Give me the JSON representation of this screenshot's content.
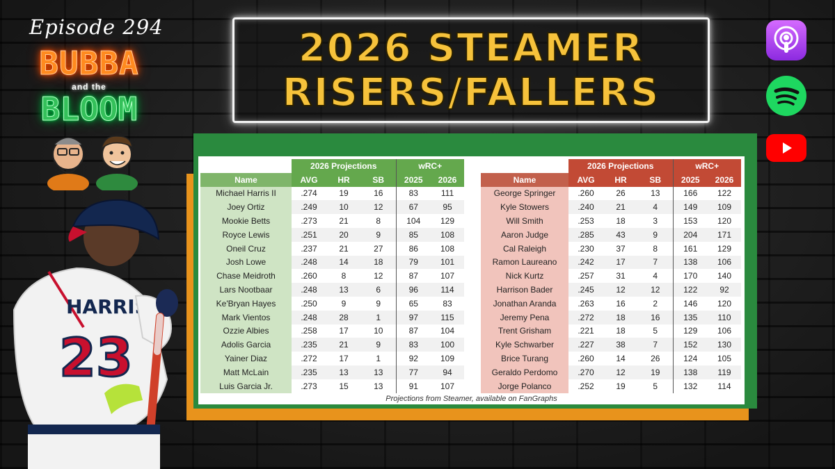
{
  "episode": "Episode 294",
  "logo": {
    "line1": "BUBBA",
    "line2": "and the",
    "line3": "BLOOM"
  },
  "title": {
    "line1": "2026 STEAMER",
    "line2": "RISERS/FALLERS"
  },
  "platforms": [
    "apple-podcasts-icon",
    "spotify-icon",
    "youtube-icon"
  ],
  "colors": {
    "title": "#f6c23b",
    "risers": "#64a84d",
    "fallers": "#c24a35",
    "board_green": "#2a8a3e",
    "board_orange": "#e8931c"
  },
  "tables": {
    "group_projections": "2026 Projections",
    "group_wrc": "wRC+",
    "columns": [
      "Name",
      "AVG",
      "HR",
      "SB",
      "2025",
      "2026"
    ],
    "risers": [
      [
        "Michael Harris II",
        ".274",
        "19",
        "16",
        "83",
        "111"
      ],
      [
        "Joey Ortiz",
        ".249",
        "10",
        "12",
        "67",
        "95"
      ],
      [
        "Mookie Betts",
        ".273",
        "21",
        "8",
        "104",
        "129"
      ],
      [
        "Royce Lewis",
        ".251",
        "20",
        "9",
        "85",
        "108"
      ],
      [
        "Oneil Cruz",
        ".237",
        "21",
        "27",
        "86",
        "108"
      ],
      [
        "Josh Lowe",
        ".248",
        "14",
        "18",
        "79",
        "101"
      ],
      [
        "Chase Meidroth",
        ".260",
        "8",
        "12",
        "87",
        "107"
      ],
      [
        "Lars Nootbaar",
        ".248",
        "13",
        "6",
        "96",
        "114"
      ],
      [
        "Ke'Bryan Hayes",
        ".250",
        "9",
        "9",
        "65",
        "83"
      ],
      [
        "Mark Vientos",
        ".248",
        "28",
        "1",
        "97",
        "115"
      ],
      [
        "Ozzie Albies",
        ".258",
        "17",
        "10",
        "87",
        "104"
      ],
      [
        "Adolis Garcia",
        ".235",
        "21",
        "9",
        "83",
        "100"
      ],
      [
        "Yainer Diaz",
        ".272",
        "17",
        "1",
        "92",
        "109"
      ],
      [
        "Matt McLain",
        ".235",
        "13",
        "13",
        "77",
        "94"
      ],
      [
        "Luis Garcia Jr.",
        ".273",
        "15",
        "13",
        "91",
        "107"
      ]
    ],
    "fallers": [
      [
        "George Springer",
        ".260",
        "26",
        "13",
        "166",
        "122"
      ],
      [
        "Kyle Stowers",
        ".240",
        "21",
        "4",
        "149",
        "109"
      ],
      [
        "Will Smith",
        ".253",
        "18",
        "3",
        "153",
        "120"
      ],
      [
        "Aaron Judge",
        ".285",
        "43",
        "9",
        "204",
        "171"
      ],
      [
        "Cal Raleigh",
        ".230",
        "37",
        "8",
        "161",
        "129"
      ],
      [
        "Ramon Laureano",
        ".242",
        "17",
        "7",
        "138",
        "106"
      ],
      [
        "Nick Kurtz",
        ".257",
        "31",
        "4",
        "170",
        "140"
      ],
      [
        "Harrison Bader",
        ".245",
        "12",
        "12",
        "122",
        "92"
      ],
      [
        "Jonathan Aranda",
        ".263",
        "16",
        "2",
        "146",
        "120"
      ],
      [
        "Jeremy Pena",
        ".272",
        "18",
        "16",
        "135",
        "110"
      ],
      [
        "Trent Grisham",
        ".221",
        "18",
        "5",
        "129",
        "106"
      ],
      [
        "Kyle Schwarber",
        ".227",
        "38",
        "7",
        "152",
        "130"
      ],
      [
        "Brice Turang",
        ".260",
        "14",
        "26",
        "124",
        "105"
      ],
      [
        "Geraldo Perdomo",
        ".270",
        "12",
        "19",
        "138",
        "119"
      ],
      [
        "Jorge Polanco",
        ".252",
        "19",
        "5",
        "132",
        "114"
      ]
    ],
    "footnote": "Projections from Steamer, available on FanGraphs"
  },
  "player": {
    "jersey_name": "HARRIS II",
    "jersey_number": "23"
  }
}
